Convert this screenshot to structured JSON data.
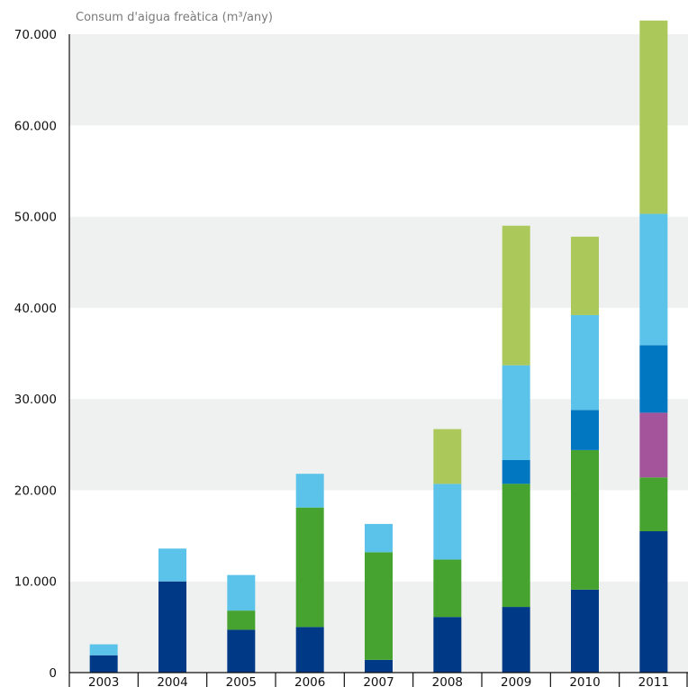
{
  "chart_data": {
    "type": "bar",
    "stacked": true,
    "ylabel": "Consum d'aigua freàtica (m³/any)",
    "ylim": [
      0,
      70000
    ],
    "yticks": [
      0,
      10000,
      20000,
      30000,
      40000,
      50000,
      60000,
      70000
    ],
    "ytick_labels": [
      "0",
      "10.000",
      "20.000",
      "30.000",
      "40.000",
      "50.000",
      "60.000",
      "70.000"
    ],
    "categories": [
      "2003",
      "2004",
      "2005",
      "2006",
      "2007",
      "2008",
      "2009",
      "2010",
      "2011"
    ],
    "grid": "alternating horizontal bands",
    "series": [
      {
        "color": "#003a87",
        "values": [
          1900,
          10000,
          4700,
          5000,
          1400,
          6100,
          7200,
          9100,
          15500
        ]
      },
      {
        "color": "#46a32f",
        "values": [
          0,
          0,
          2100,
          13100,
          11800,
          6300,
          13500,
          15300,
          5900
        ]
      },
      {
        "color": "#a3549a",
        "values": [
          0,
          0,
          0,
          0,
          0,
          0,
          0,
          0,
          7100
        ]
      },
      {
        "color": "#0077c0",
        "values": [
          0,
          0,
          0,
          0,
          0,
          0,
          2600,
          4400,
          7400
        ]
      },
      {
        "color": "#5bc2ea",
        "values": [
          1200,
          3600,
          3900,
          3700,
          3100,
          8300,
          10400,
          10400,
          14400
        ]
      },
      {
        "color": "#aac95a",
        "values": [
          0,
          0,
          0,
          0,
          0,
          6000,
          15300,
          8600,
          21200
        ]
      }
    ]
  }
}
